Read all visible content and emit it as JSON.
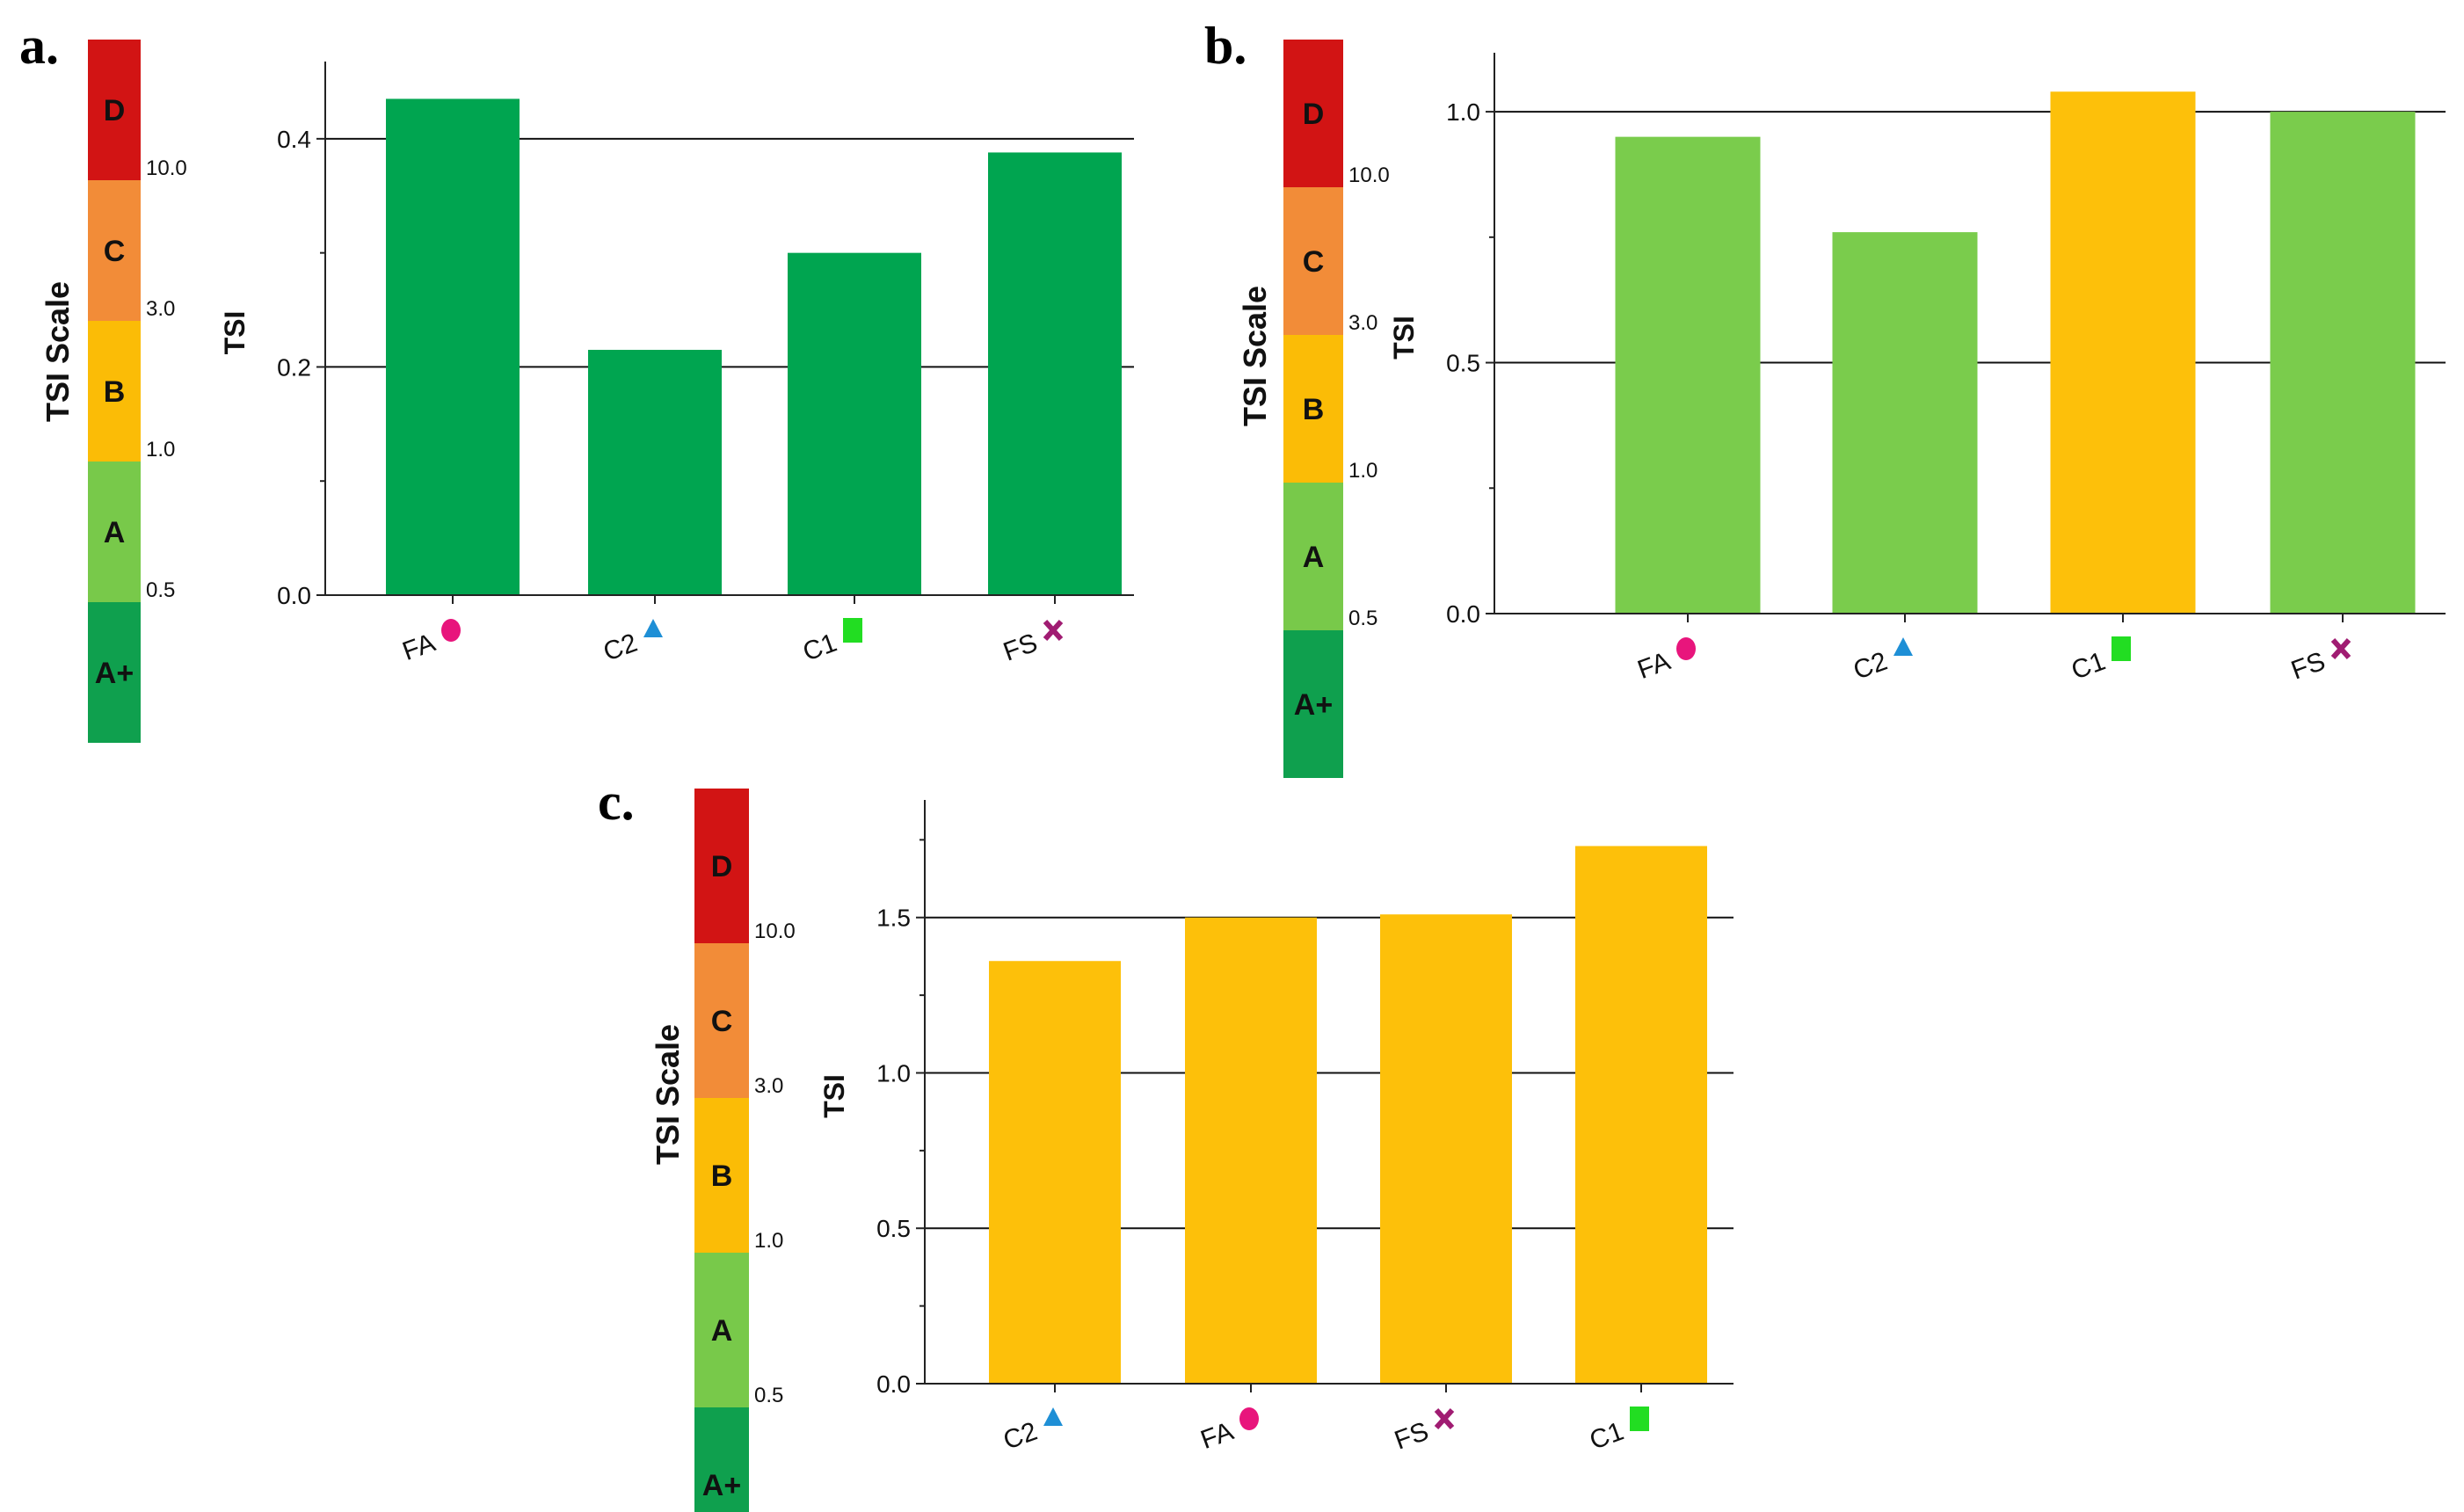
{
  "tsi_scale": {
    "title": "TSI Scale",
    "grades": [
      {
        "label": "D",
        "color": "#d21414"
      },
      {
        "label": "C",
        "color": "#f28c38"
      },
      {
        "label": "B",
        "color": "#fbbc06"
      },
      {
        "label": "A",
        "color": "#78c94a"
      },
      {
        "label": "A+",
        "color": "#0fa04e"
      }
    ],
    "thresholds": [
      "10.0",
      "3.0",
      "1.0",
      "0.5"
    ]
  },
  "marker_colors": {
    "circle": "#e8157c",
    "triangle": "#1e8fd6",
    "square": "#22dd22",
    "cross": "#a01c72"
  },
  "chart_data": [
    {
      "panel": "a.",
      "type": "bar",
      "ylabel": "TSI",
      "ylim": [
        0,
        0.46
      ],
      "yticks": [
        "0.0",
        "0.2",
        "0.4"
      ],
      "ytick_values": [
        0,
        0.2,
        0.4
      ],
      "categories": [
        "FA",
        "C2",
        "C1",
        "FS"
      ],
      "markers": [
        "circle",
        "triangle",
        "square",
        "cross"
      ],
      "values": [
        0.435,
        0.215,
        0.3,
        0.388
      ],
      "bar_colors": [
        "#00a550",
        "#00a550",
        "#00a550",
        "#00a550"
      ]
    },
    {
      "panel": "b.",
      "type": "bar",
      "ylabel": "TSI",
      "ylim": [
        0,
        1.1
      ],
      "yticks": [
        "0.0",
        "0.5",
        "1.0"
      ],
      "ytick_values": [
        0,
        0.5,
        1.0
      ],
      "categories": [
        "FA",
        "C2",
        "C1",
        "FS"
      ],
      "markers": [
        "circle",
        "triangle",
        "square",
        "cross"
      ],
      "values": [
        0.95,
        0.76,
        1.04,
        1.0
      ],
      "bar_colors": [
        "#7acc4c",
        "#7acc4c",
        "#fdc00a",
        "#7acc4c"
      ]
    },
    {
      "panel": "c.",
      "type": "bar",
      "ylabel": "TSI",
      "ylim": [
        0,
        1.85
      ],
      "yticks": [
        "0.0",
        "0.5",
        "1.0",
        "1.5"
      ],
      "ytick_values": [
        0,
        0.5,
        1.0,
        1.5
      ],
      "categories": [
        "C2",
        "FA",
        "FS",
        "C1"
      ],
      "markers": [
        "triangle",
        "circle",
        "cross",
        "square"
      ],
      "values": [
        1.36,
        1.5,
        1.51,
        1.73
      ],
      "bar_colors": [
        "#fdc00a",
        "#fdc00a",
        "#fdc00a",
        "#fdc00a"
      ]
    }
  ]
}
